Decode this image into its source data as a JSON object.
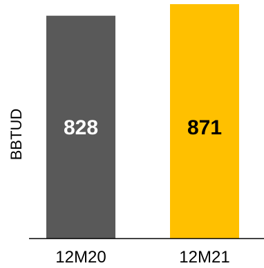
{
  "chart_data": {
    "type": "bar",
    "categories": [
      "12M20",
      "12M21"
    ],
    "values": [
      828,
      871
    ],
    "data_labels": [
      "828",
      "871"
    ],
    "ylabel": "BBTUD",
    "ylim": [
      0,
      871
    ],
    "grid": false,
    "bar_colors": [
      "#595959",
      "#FFC000"
    ],
    "label_colors": [
      "#FFFFFF",
      "#000000"
    ],
    "axis_color": "#000000"
  }
}
